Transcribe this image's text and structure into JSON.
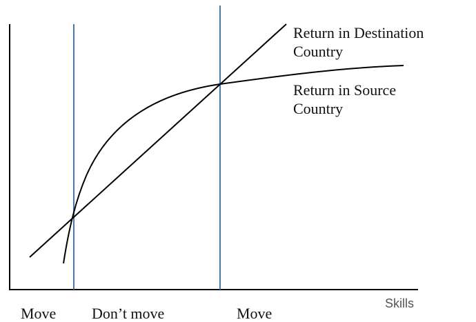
{
  "curves": {
    "destination": {
      "label": [
        "Return in Destination",
        "Country"
      ]
    },
    "source": {
      "label": [
        "Return in Source",
        "Country"
      ]
    }
  },
  "x_axis": {
    "label": "Skills"
  },
  "regions": [
    "Move",
    "Don’t move",
    "Move"
  ]
}
